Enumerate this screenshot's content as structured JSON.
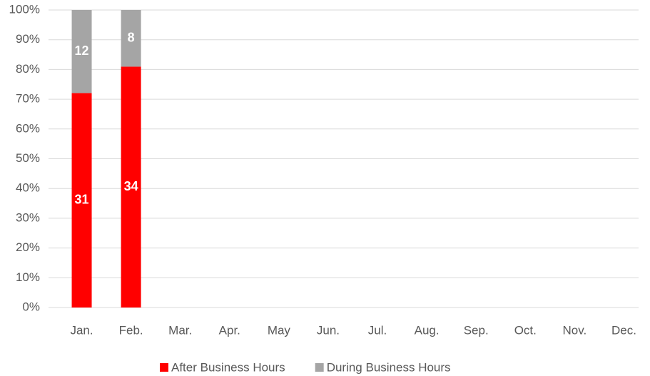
{
  "chart_data": {
    "type": "bar",
    "stacking": "percent",
    "categories": [
      "Jan.",
      "Feb.",
      "Mar.",
      "Apr.",
      "May",
      "Jun.",
      "Jul.",
      "Aug.",
      "Sep.",
      "Oct.",
      "Nov.",
      "Dec."
    ],
    "series": [
      {
        "name": "After Business Hours",
        "color": "#ff0000",
        "values": [
          31,
          34,
          null,
          null,
          null,
          null,
          null,
          null,
          null,
          null,
          null,
          null
        ]
      },
      {
        "name": "During Business Hours",
        "color": "#a5a5a5",
        "values": [
          12,
          8,
          null,
          null,
          null,
          null,
          null,
          null,
          null,
          null,
          null,
          null
        ]
      }
    ],
    "ylim": [
      0,
      100
    ],
    "yticks": [
      {
        "value": 0,
        "label": "0%"
      },
      {
        "value": 10,
        "label": "10%"
      },
      {
        "value": 20,
        "label": "20%"
      },
      {
        "value": 30,
        "label": "30%"
      },
      {
        "value": 40,
        "label": "40%"
      },
      {
        "value": 50,
        "label": "50%"
      },
      {
        "value": 60,
        "label": "60%"
      },
      {
        "value": 70,
        "label": "70%"
      },
      {
        "value": 80,
        "label": "80%"
      },
      {
        "value": 90,
        "label": "90%"
      },
      {
        "value": 100,
        "label": "100%"
      }
    ],
    "grid": true,
    "legend": "bottom"
  }
}
